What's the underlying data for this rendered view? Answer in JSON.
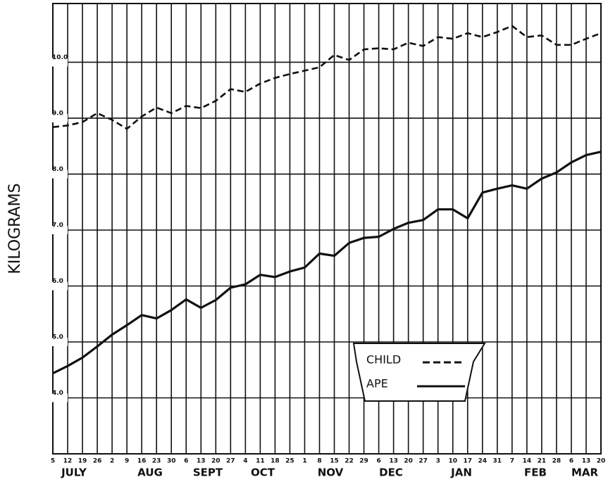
{
  "chart_data": {
    "type": "line",
    "y_label": "KILOGRAMS",
    "categories": [
      "5",
      "12",
      "19",
      "26",
      "2",
      "9",
      "16",
      "23",
      "30",
      "6",
      "13",
      "20",
      "27",
      "4",
      "11",
      "18",
      "25",
      "1",
      "8",
      "15",
      "22",
      "29",
      "6",
      "13",
      "20",
      "27",
      "3",
      "10",
      "17",
      "24",
      "31",
      "7",
      "14",
      "21",
      "28",
      "6",
      "13",
      "20"
    ],
    "months": [
      "JULY",
      "AUG",
      "SEPT",
      "OCT",
      "NOV",
      "DEC",
      "JAN",
      "FEB",
      "MAR"
    ],
    "series": [
      {
        "name": "CHILD",
        "color": "#111111",
        "dash": true,
        "values": [
          8.84,
          8.87,
          8.93,
          9.09,
          8.97,
          8.81,
          9.03,
          9.19,
          9.09,
          9.22,
          9.18,
          9.31,
          9.52,
          9.47,
          9.62,
          9.72,
          9.79,
          9.85,
          9.91,
          10.13,
          10.04,
          10.23,
          10.25,
          10.23,
          10.35,
          10.29,
          10.45,
          10.42,
          10.52,
          10.45,
          10.54,
          10.65,
          10.45,
          10.48,
          10.31,
          10.31,
          10.42,
          10.52
        ]
      },
      {
        "name": "APE",
        "color": "#111111",
        "dash": false,
        "values": [
          4.44,
          4.57,
          4.72,
          4.92,
          5.13,
          5.3,
          5.48,
          5.42,
          5.57,
          5.76,
          5.61,
          5.75,
          5.97,
          6.03,
          6.2,
          6.16,
          6.26,
          6.33,
          6.58,
          6.54,
          6.77,
          6.86,
          6.88,
          7.02,
          7.13,
          7.18,
          7.37,
          7.37,
          7.21,
          7.67,
          7.74,
          7.8,
          7.74,
          7.92,
          8.03,
          8.21,
          8.34,
          8.4
        ]
      }
    ],
    "ylim": [
      3.0,
      11.05
    ],
    "yticks": [
      {
        "value": 4,
        "label": "4.0"
      },
      {
        "value": 5,
        "label": "5.0"
      },
      {
        "value": 6,
        "label": "6.0"
      },
      {
        "value": 7,
        "label": "7.0"
      },
      {
        "value": 8,
        "label": "8.0"
      },
      {
        "value": 9,
        "label": "9.0"
      },
      {
        "value": 10,
        "label": "10.0"
      }
    ],
    "grid": true
  }
}
